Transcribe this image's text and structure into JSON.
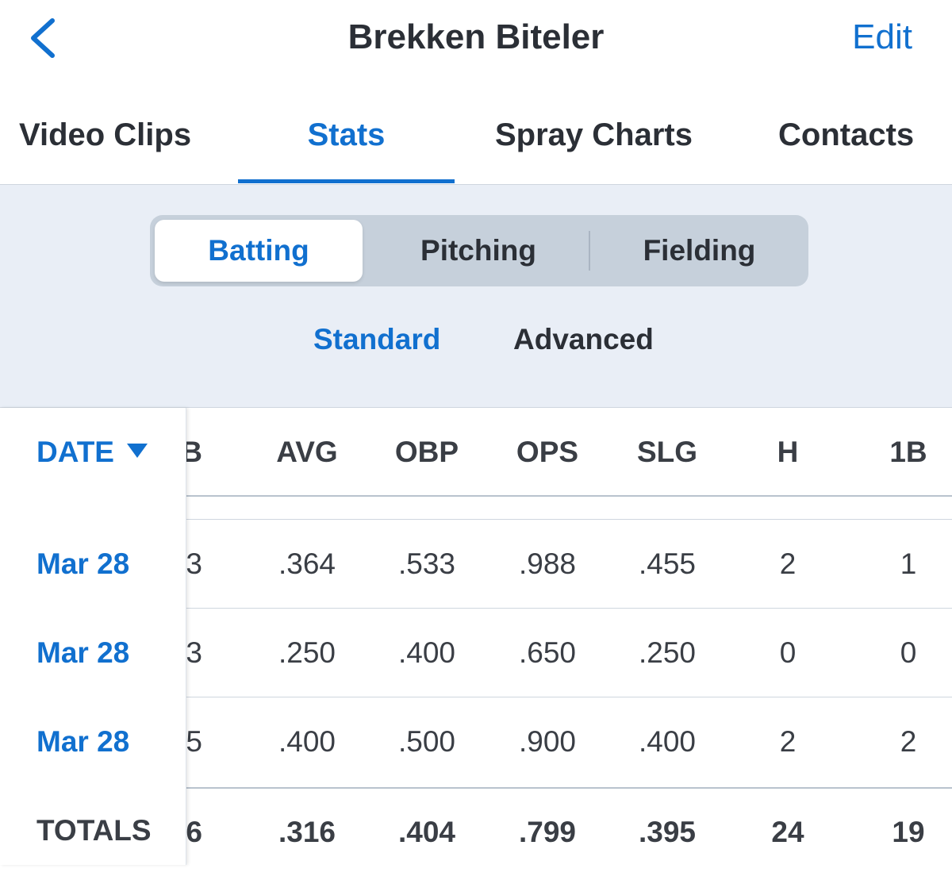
{
  "nav": {
    "title": "Brekken Biteler",
    "edit_label": "Edit",
    "back_icon": "chevron-left-icon"
  },
  "tabs": [
    {
      "label": "Video Clips",
      "active": false
    },
    {
      "label": "Stats",
      "active": true
    },
    {
      "label": "Spray Charts",
      "active": false
    },
    {
      "label": "Contacts",
      "active": false
    }
  ],
  "category_segments": [
    {
      "label": "Batting",
      "active": true
    },
    {
      "label": "Pitching",
      "active": false
    },
    {
      "label": "Fielding",
      "active": false
    }
  ],
  "view_segments": [
    {
      "label": "Standard",
      "active": true
    },
    {
      "label": "Advanced",
      "active": false
    }
  ],
  "table": {
    "date_header": "DATE",
    "sort_direction": "descending",
    "clipped_header": "AB",
    "columns": [
      "AVG",
      "OBP",
      "OPS",
      "SLG",
      "H",
      "1B"
    ],
    "rows": [
      {
        "date": "Mar 28",
        "clipped": "3",
        "values": [
          ".364",
          ".533",
          ".988",
          ".455",
          "2",
          "1"
        ]
      },
      {
        "date": "Mar 28",
        "clipped": "3",
        "values": [
          ".250",
          ".400",
          ".650",
          ".250",
          "0",
          "0"
        ]
      },
      {
        "date": "Mar 28",
        "clipped": "5",
        "values": [
          ".400",
          ".500",
          ".900",
          ".400",
          "2",
          "2"
        ]
      }
    ],
    "totals": {
      "label": "TOTALS",
      "clipped": "6",
      "values": [
        ".316",
        ".404",
        ".799",
        ".395",
        "24",
        "19"
      ]
    }
  },
  "colors": {
    "accent": "#1170cf",
    "filter_background": "#e9eef6",
    "segment_track": "#c6d0db",
    "text": "#2b2f36"
  }
}
